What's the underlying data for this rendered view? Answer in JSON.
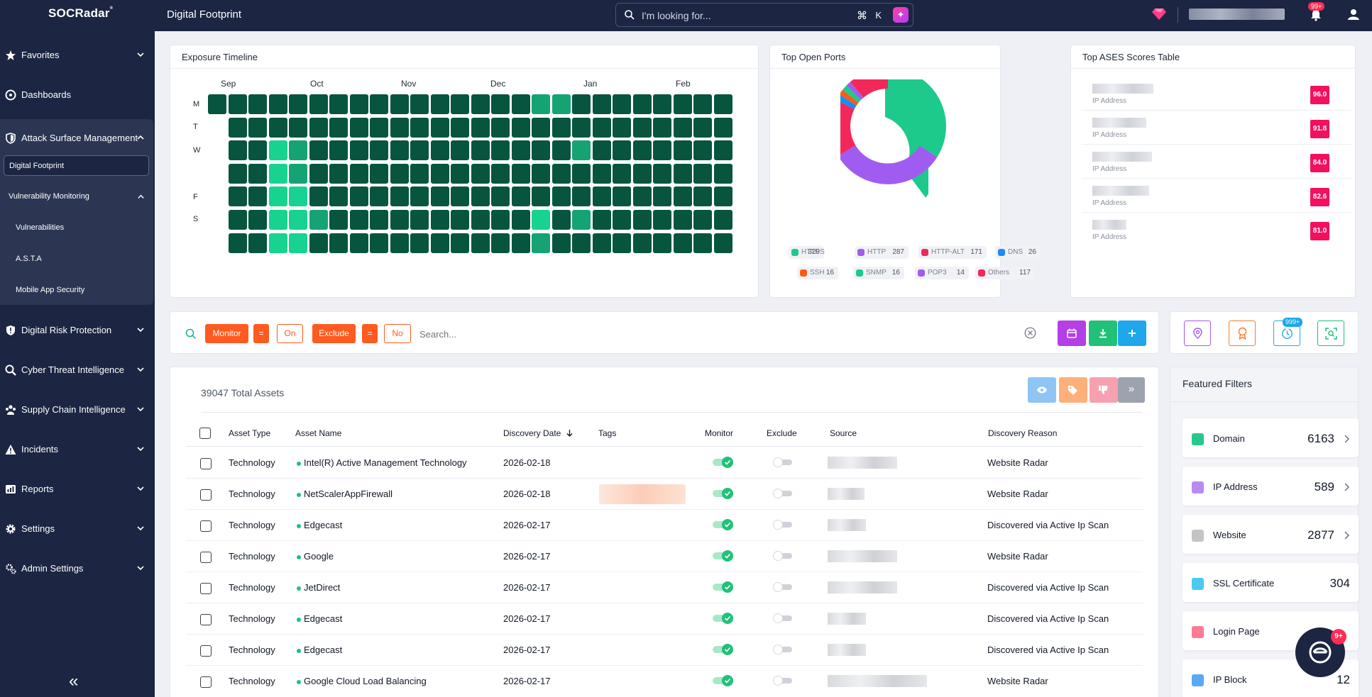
{
  "topbar": {
    "logo_text": "SOCRadar",
    "logo_reg": "®",
    "page_title": "Digital Footprint",
    "search_placeholder": "I'm looking for...",
    "search_shortcut_cmd": "⌘",
    "search_shortcut_key": "K",
    "notification_count": "99+"
  },
  "sidebar": {
    "items": [
      {
        "label": "Favorites",
        "icon": "star-icon"
      },
      {
        "label": "Dashboards",
        "icon": "gauge-icon"
      },
      {
        "label": "Attack Surface Management",
        "icon": "shield-icon"
      },
      {
        "label": "Digital Risk Protection",
        "icon": "shield-alert-icon"
      },
      {
        "label": "Cyber Threat Intelligence",
        "icon": "search-bug-icon"
      },
      {
        "label": "Supply Chain Intelligence",
        "icon": "people-icon"
      },
      {
        "label": "Incidents",
        "icon": "warning-icon"
      },
      {
        "label": "Reports",
        "icon": "report-icon"
      },
      {
        "label": "Settings",
        "icon": "gear-icon"
      },
      {
        "label": "Admin Settings",
        "icon": "gears-icon"
      }
    ],
    "asm_sub": {
      "digital_footprint": "Digital Footprint",
      "vulnerability_monitoring": "Vulnerability Monitoring",
      "vulnerabilities": "Vulnerabilities",
      "asta": "A.S.T.A",
      "mobile_app_security": "Mobile App Security"
    },
    "collapse_label": "«"
  },
  "exposure_timeline": {
    "title": "Exposure Timeline",
    "months": [
      "Sep",
      "Oct",
      "Nov",
      "Dec",
      "Jan",
      "Feb"
    ],
    "days": [
      "M",
      "T",
      "W",
      "F",
      "S"
    ]
  },
  "top_open_ports": {
    "title": "Top Open Ports",
    "colors": {
      "HTTPS": "#1ec98c",
      "HTTP": "#a05cf0",
      "HTTP-ALT": "#f2285a",
      "DNS": "#1b8cf5",
      "SSH": "#ff5a14",
      "SNMP": "#1ec98c",
      "POP3": "#a05cf0",
      "Others": "#f2285a"
    },
    "legend": [
      {
        "name": "HTTPS",
        "count": "329"
      },
      {
        "name": "HTTP",
        "count": "287"
      },
      {
        "name": "HTTP-ALT",
        "count": "171"
      },
      {
        "name": "DNS",
        "count": "26"
      },
      {
        "name": "SSH",
        "count": "16"
      },
      {
        "name": "SNMP",
        "count": "16"
      },
      {
        "name": "POP3",
        "count": "14"
      },
      {
        "name": "Others",
        "count": "117"
      }
    ]
  },
  "ases": {
    "title": "Top ASES Scores Table",
    "rows": [
      {
        "label": "IP Address",
        "score": "96.0"
      },
      {
        "label": "IP Address",
        "score": "91.8"
      },
      {
        "label": "IP Address",
        "score": "84.0"
      },
      {
        "label": "IP Address",
        "score": "82.6"
      },
      {
        "label": "IP Address",
        "score": "81.0"
      }
    ]
  },
  "filters": {
    "chip1_field": "Monitor",
    "chip1_op": "=",
    "chip1_value": "On",
    "chip2_field": "Exclude",
    "chip2_op": "=",
    "chip2_value": "No",
    "search_placeholder": "Search...",
    "button_colors": {
      "calendar": "#b43fe6",
      "download": "#21c178",
      "add": "#1ea7ea"
    },
    "tool_badge": "999+"
  },
  "assets": {
    "total": "39047 Total Assets",
    "columns": [
      "Asset Type",
      "Asset Name",
      "Discovery Date",
      "Tags",
      "Monitor",
      "Exclude",
      "Source",
      "Discovery Reason"
    ],
    "rows": [
      {
        "type": "Technology",
        "name": "Intel(R) Active Management Technology",
        "date": "2026-02-18",
        "reason": "Website Radar",
        "monitor": true,
        "exclude": false
      },
      {
        "type": "Technology",
        "name": "NetScalerAppFirewall",
        "date": "2026-02-18",
        "reason": "Website Radar",
        "monitor": true,
        "exclude": false
      },
      {
        "type": "Technology",
        "name": "Edgecast",
        "date": "2026-02-17",
        "reason": "Discovered via Active Ip Scan",
        "monitor": true,
        "exclude": false
      },
      {
        "type": "Technology",
        "name": "Google",
        "date": "2026-02-17",
        "reason": "Website Radar",
        "monitor": true,
        "exclude": false
      },
      {
        "type": "Technology",
        "name": "JetDirect",
        "date": "2026-02-17",
        "reason": "Discovered via Active Ip Scan",
        "monitor": true,
        "exclude": false
      },
      {
        "type": "Technology",
        "name": "Edgecast",
        "date": "2026-02-17",
        "reason": "Discovered via Active Ip Scan",
        "monitor": true,
        "exclude": false
      },
      {
        "type": "Technology",
        "name": "Edgecast",
        "date": "2026-02-17",
        "reason": "Discovered via Active Ip Scan",
        "monitor": true,
        "exclude": false
      },
      {
        "type": "Technology",
        "name": "Google Cloud Load Balancing",
        "date": "2026-02-17",
        "reason": "Website Radar",
        "monitor": true,
        "exclude": false
      }
    ]
  },
  "featured_filters": {
    "title": "Featured Filters",
    "items": [
      {
        "name": "Domain",
        "count": "6163",
        "color": "#27c98a"
      },
      {
        "name": "IP Address",
        "count": "589",
        "color": "#b88af2"
      },
      {
        "name": "Website",
        "count": "2877",
        "color": "#c4c4c4"
      },
      {
        "name": "SSL Certificate",
        "count": "304",
        "color": "#4cc9f0"
      },
      {
        "name": "Login Page",
        "count": "",
        "color": "#ff7a93"
      },
      {
        "name": "IP Block",
        "count": "12",
        "color": "#5aa7f5"
      }
    ]
  },
  "chat": {
    "badge": "9+"
  }
}
